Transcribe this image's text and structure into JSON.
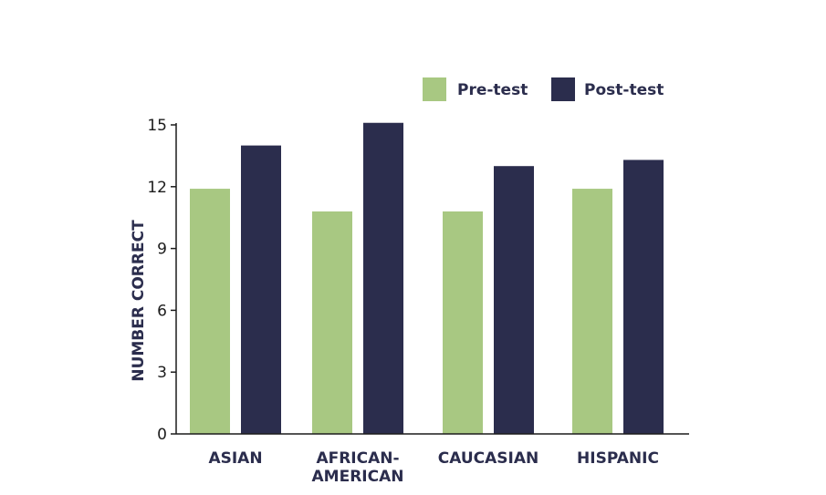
{
  "chart_data": {
    "type": "bar",
    "title": "",
    "xlabel": "",
    "ylabel": "NUMBER CORRECT",
    "ylim": [
      0,
      15
    ],
    "yticks": [
      0,
      3,
      6,
      9,
      12,
      15
    ],
    "categories": [
      [
        "ASIAN"
      ],
      [
        "AFRICAN-",
        "AMERICAN"
      ],
      [
        "CAUCASIAN"
      ],
      [
        "HISPANIC"
      ]
    ],
    "series": [
      {
        "name": "Pre-test",
        "color": "#a8c882",
        "values": [
          11.9,
          10.8,
          10.8,
          11.9
        ]
      },
      {
        "name": "Post-test",
        "color": "#2b2d4d",
        "values": [
          14.0,
          15.1,
          13.0,
          13.3
        ]
      }
    ],
    "legend": "top-right",
    "grid": false
  }
}
